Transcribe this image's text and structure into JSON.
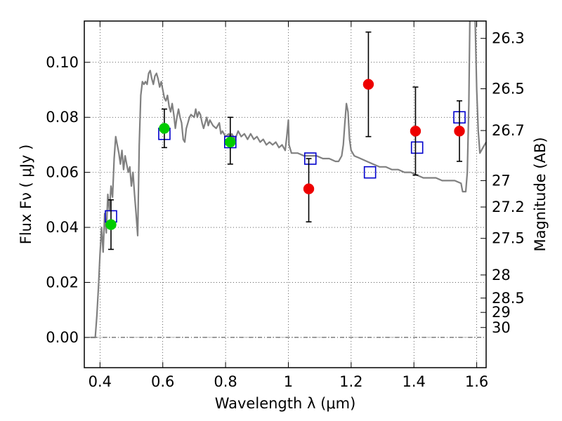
{
  "chart_data": {
    "type": "scatter",
    "xlabel": "Wavelength  λ (μm)",
    "ylabel": "Flux  Fν  ( μJy )",
    "ylabel_right": "Magnitude (AB)",
    "xlim": [
      0.35,
      1.63
    ],
    "ylim": [
      -0.011,
      0.115
    ],
    "x_ticks": [
      0.4,
      0.6,
      0.8,
      1.0,
      1.2,
      1.4,
      1.6
    ],
    "x_tick_labels": [
      "0.4",
      "0.6",
      "0.8",
      "1",
      "1.2",
      "1.4",
      "1.6"
    ],
    "y_ticks": [
      0.0,
      0.02,
      0.04,
      0.06,
      0.08,
      0.1
    ],
    "y_tick_labels": [
      "0.00",
      "0.02",
      "0.04",
      "0.06",
      "0.08",
      "0.10"
    ],
    "right_ticks": [
      {
        "label": "26.3",
        "flux": 0.1087
      },
      {
        "label": "26.5",
        "flux": 0.0904
      },
      {
        "label": "26.7",
        "flux": 0.0752
      },
      {
        "label": "27",
        "flux": 0.057
      },
      {
        "label": "27.2",
        "flux": 0.0474
      },
      {
        "label": "27.5",
        "flux": 0.036
      },
      {
        "label": "28",
        "flux": 0.0227
      },
      {
        "label": "28.5",
        "flux": 0.0143
      },
      {
        "label": "29",
        "flux": 0.0091
      },
      {
        "label": "30",
        "flux": 0.0036
      }
    ],
    "grid": true,
    "series": [
      {
        "kind": "line",
        "color": "#808080",
        "points": [
          [
            0.37,
            0.0
          ],
          [
            0.385,
            0.0
          ],
          [
            0.39,
            0.008
          ],
          [
            0.395,
            0.018
          ],
          [
            0.4,
            0.03
          ],
          [
            0.405,
            0.04
          ],
          [
            0.41,
            0.031
          ],
          [
            0.415,
            0.045
          ],
          [
            0.42,
            0.038
          ],
          [
            0.425,
            0.052
          ],
          [
            0.43,
            0.046
          ],
          [
            0.435,
            0.055
          ],
          [
            0.44,
            0.051
          ],
          [
            0.445,
            0.065
          ],
          [
            0.45,
            0.073
          ],
          [
            0.455,
            0.07
          ],
          [
            0.46,
            0.067
          ],
          [
            0.465,
            0.063
          ],
          [
            0.47,
            0.068
          ],
          [
            0.475,
            0.061
          ],
          [
            0.48,
            0.066
          ],
          [
            0.485,
            0.063
          ],
          [
            0.49,
            0.06
          ],
          [
            0.495,
            0.062
          ],
          [
            0.5,
            0.055
          ],
          [
            0.505,
            0.06
          ],
          [
            0.51,
            0.052
          ],
          [
            0.515,
            0.045
          ],
          [
            0.52,
            0.037
          ],
          [
            0.525,
            0.07
          ],
          [
            0.53,
            0.088
          ],
          [
            0.535,
            0.093
          ],
          [
            0.54,
            0.092
          ],
          [
            0.545,
            0.093
          ],
          [
            0.55,
            0.092
          ],
          [
            0.555,
            0.096
          ],
          [
            0.56,
            0.097
          ],
          [
            0.565,
            0.094
          ],
          [
            0.57,
            0.092
          ],
          [
            0.575,
            0.095
          ],
          [
            0.58,
            0.096
          ],
          [
            0.585,
            0.094
          ],
          [
            0.59,
            0.091
          ],
          [
            0.595,
            0.093
          ],
          [
            0.6,
            0.09
          ],
          [
            0.605,
            0.087
          ],
          [
            0.61,
            0.086
          ],
          [
            0.615,
            0.088
          ],
          [
            0.62,
            0.084
          ],
          [
            0.625,
            0.082
          ],
          [
            0.63,
            0.085
          ],
          [
            0.635,
            0.081
          ],
          [
            0.64,
            0.076
          ],
          [
            0.645,
            0.08
          ],
          [
            0.65,
            0.083
          ],
          [
            0.655,
            0.08
          ],
          [
            0.66,
            0.078
          ],
          [
            0.665,
            0.072
          ],
          [
            0.67,
            0.071
          ],
          [
            0.675,
            0.076
          ],
          [
            0.68,
            0.078
          ],
          [
            0.685,
            0.08
          ],
          [
            0.69,
            0.081
          ],
          [
            0.7,
            0.08
          ],
          [
            0.705,
            0.083
          ],
          [
            0.71,
            0.08
          ],
          [
            0.715,
            0.082
          ],
          [
            0.72,
            0.081
          ],
          [
            0.725,
            0.078
          ],
          [
            0.73,
            0.076
          ],
          [
            0.74,
            0.08
          ],
          [
            0.745,
            0.077
          ],
          [
            0.75,
            0.079
          ],
          [
            0.76,
            0.077
          ],
          [
            0.77,
            0.076
          ],
          [
            0.78,
            0.078
          ],
          [
            0.785,
            0.074
          ],
          [
            0.79,
            0.075
          ],
          [
            0.8,
            0.073
          ],
          [
            0.81,
            0.074
          ],
          [
            0.815,
            0.072
          ],
          [
            0.82,
            0.074
          ],
          [
            0.83,
            0.072
          ],
          [
            0.84,
            0.075
          ],
          [
            0.85,
            0.073
          ],
          [
            0.86,
            0.074
          ],
          [
            0.87,
            0.072
          ],
          [
            0.88,
            0.074
          ],
          [
            0.89,
            0.072
          ],
          [
            0.9,
            0.073
          ],
          [
            0.91,
            0.071
          ],
          [
            0.92,
            0.072
          ],
          [
            0.93,
            0.07
          ],
          [
            0.94,
            0.071
          ],
          [
            0.95,
            0.07
          ],
          [
            0.96,
            0.071
          ],
          [
            0.97,
            0.069
          ],
          [
            0.98,
            0.07
          ],
          [
            0.99,
            0.068
          ],
          [
            0.995,
            0.073
          ],
          [
            1.0,
            0.079
          ],
          [
            1.002,
            0.07
          ],
          [
            1.01,
            0.067
          ],
          [
            1.03,
            0.067
          ],
          [
            1.05,
            0.066
          ],
          [
            1.07,
            0.066
          ],
          [
            1.09,
            0.066
          ],
          [
            1.11,
            0.065
          ],
          [
            1.13,
            0.065
          ],
          [
            1.15,
            0.064
          ],
          [
            1.16,
            0.064
          ],
          [
            1.17,
            0.066
          ],
          [
            1.175,
            0.07
          ],
          [
            1.18,
            0.078
          ],
          [
            1.185,
            0.085
          ],
          [
            1.19,
            0.082
          ],
          [
            1.195,
            0.072
          ],
          [
            1.2,
            0.068
          ],
          [
            1.21,
            0.066
          ],
          [
            1.23,
            0.065
          ],
          [
            1.25,
            0.064
          ],
          [
            1.27,
            0.063
          ],
          [
            1.29,
            0.062
          ],
          [
            1.31,
            0.062
          ],
          [
            1.33,
            0.061
          ],
          [
            1.35,
            0.061
          ],
          [
            1.37,
            0.06
          ],
          [
            1.39,
            0.06
          ],
          [
            1.41,
            0.059
          ],
          [
            1.43,
            0.058
          ],
          [
            1.45,
            0.058
          ],
          [
            1.47,
            0.058
          ],
          [
            1.49,
            0.057
          ],
          [
            1.51,
            0.057
          ],
          [
            1.53,
            0.057
          ],
          [
            1.55,
            0.056
          ],
          [
            1.555,
            0.053
          ],
          [
            1.565,
            0.053
          ],
          [
            1.57,
            0.06
          ],
          [
            1.575,
            0.085
          ],
          [
            1.578,
            0.115
          ]
        ]
      },
      {
        "kind": "line",
        "color": "#808080",
        "points": [
          [
            1.595,
            0.115
          ],
          [
            1.6,
            0.09
          ],
          [
            1.605,
            0.075
          ],
          [
            1.61,
            0.067
          ],
          [
            1.615,
            0.068
          ],
          [
            1.62,
            0.069
          ],
          [
            1.625,
            0.07
          ],
          [
            1.63,
            0.071
          ]
        ]
      },
      {
        "kind": "markers",
        "marker": "square",
        "color": "#0000cc",
        "points": [
          [
            0.435,
            0.044
          ],
          [
            0.605,
            0.074
          ],
          [
            0.815,
            0.071
          ],
          [
            1.07,
            0.065
          ],
          [
            1.26,
            0.06
          ],
          [
            1.41,
            0.069
          ],
          [
            1.545,
            0.08
          ]
        ]
      },
      {
        "kind": "markers",
        "marker": "circle",
        "color": "#00cc00",
        "points": [
          [
            0.435,
            0.041
          ],
          [
            0.605,
            0.076
          ],
          [
            0.815,
            0.071
          ]
        ],
        "yerr": [
          [
            0.009,
            0.009
          ],
          [
            0.007,
            0.007
          ],
          [
            0.008,
            0.009
          ]
        ]
      },
      {
        "kind": "markers",
        "marker": "circle",
        "color": "#ee0000",
        "points": [
          [
            1.065,
            0.054
          ],
          [
            1.255,
            0.092
          ],
          [
            1.405,
            0.075
          ],
          [
            1.545,
            0.075
          ]
        ],
        "yerr": [
          [
            0.012,
            0.011
          ],
          [
            0.019,
            0.019
          ],
          [
            0.016,
            0.016
          ],
          [
            0.011,
            0.011
          ]
        ]
      }
    ],
    "hline": {
      "y": 0.0,
      "style": "dash-dot",
      "color": "#000000"
    }
  }
}
